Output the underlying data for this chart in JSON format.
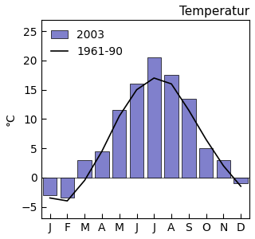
{
  "title": "Temperatur",
  "ylabel": "°C",
  "months": [
    "J",
    "F",
    "M",
    "A",
    "M",
    "J",
    "J",
    "A",
    "S",
    "O",
    "N",
    "D"
  ],
  "temp_2003": [
    -3.0,
    -3.5,
    3.0,
    4.5,
    11.5,
    16.0,
    20.5,
    17.5,
    13.5,
    5.0,
    3.0,
    -1.0
  ],
  "temp_normal": [
    -3.5,
    -4.0,
    -0.5,
    4.5,
    10.5,
    15.0,
    17.0,
    16.0,
    11.5,
    6.5,
    2.0,
    -1.5
  ],
  "bar_color": "#8080cc",
  "bar_edgecolor": "#000000",
  "line_color": "#000000",
  "ylim": [
    -7,
    27
  ],
  "yticks": [
    -5,
    0,
    5,
    10,
    15,
    20,
    25
  ],
  "legend_bar_label": "2003",
  "legend_line_label": "1961-90",
  "figure_width": 3.2,
  "figure_height": 3.0,
  "background_color": "#ffffff",
  "title_fontsize": 11,
  "axis_fontsize": 10,
  "tick_fontsize": 10
}
